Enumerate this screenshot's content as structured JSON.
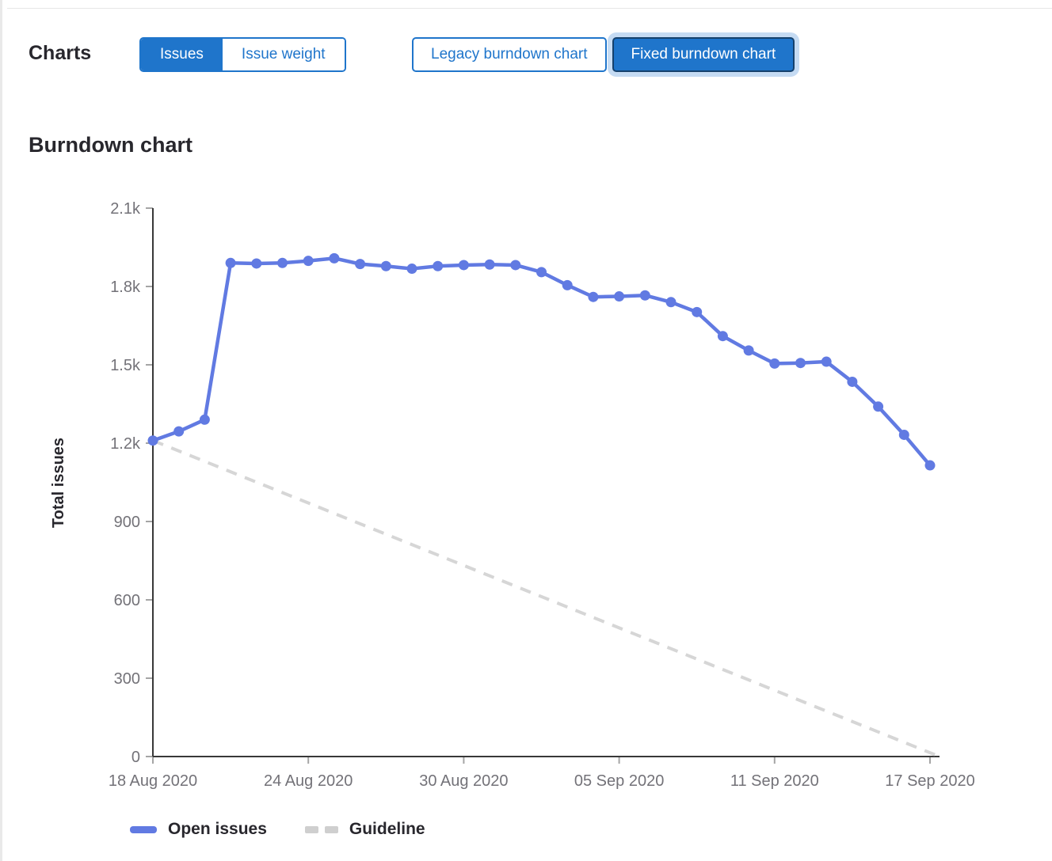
{
  "header": {
    "section_label": "Charts",
    "metric_toggle": {
      "options": [
        {
          "label": "Issues",
          "selected": true
        },
        {
          "label": "Issue weight",
          "selected": false
        }
      ]
    },
    "chart_version_toggle": {
      "options": [
        {
          "label": "Legacy burndown chart",
          "selected": false
        },
        {
          "label": "Fixed burndown chart",
          "selected": true,
          "focused": true
        }
      ]
    }
  },
  "colors": {
    "accent": "#1f75cb",
    "focus_border": "#15416d",
    "focus_ring": "#c5dbf3",
    "line": "#617ae2",
    "guideline": "#d6d6d6",
    "guideline_swatch": "#cfcfcf",
    "axis": "#383838",
    "tick": "#a5a5a5",
    "tick_label": "#737278",
    "text": "#28272d"
  },
  "chart_data": {
    "type": "line",
    "title": "Burndown chart",
    "xlabel": "",
    "ylabel": "Total issues",
    "ylim": [
      0,
      2100
    ],
    "grid": false,
    "legend_position": "bottom",
    "y_ticks": [
      0,
      300,
      600,
      900,
      1200,
      1500,
      1800,
      2100
    ],
    "y_tick_labels": [
      "0",
      "300",
      "600",
      "900",
      "1.2k",
      "1.5k",
      "1.8k",
      "2.1k"
    ],
    "x_tick_labels": [
      "18 Aug 2020",
      "24 Aug 2020",
      "30 Aug 2020",
      "05 Sep 2020",
      "11 Sep 2020",
      "17 Sep 2020"
    ],
    "x_tick_every_days": 6,
    "x": [
      "18 Aug 2020",
      "19 Aug 2020",
      "20 Aug 2020",
      "21 Aug 2020",
      "22 Aug 2020",
      "23 Aug 2020",
      "24 Aug 2020",
      "25 Aug 2020",
      "26 Aug 2020",
      "27 Aug 2020",
      "28 Aug 2020",
      "29 Aug 2020",
      "30 Aug 2020",
      "31 Aug 2020",
      "01 Sep 2020",
      "02 Sep 2020",
      "03 Sep 2020",
      "04 Sep 2020",
      "05 Sep 2020",
      "06 Sep 2020",
      "07 Sep 2020",
      "08 Sep 2020",
      "09 Sep 2020",
      "10 Sep 2020",
      "11 Sep 2020",
      "12 Sep 2020",
      "13 Sep 2020",
      "14 Sep 2020",
      "15 Sep 2020",
      "16 Sep 2020",
      "17 Sep 2020"
    ],
    "series": [
      {
        "name": "Open issues",
        "style": "solid",
        "values": [
          1210,
          1245,
          1290,
          1890,
          1888,
          1890,
          1898,
          1908,
          1886,
          1878,
          1868,
          1878,
          1882,
          1884,
          1882,
          1855,
          1805,
          1760,
          1762,
          1766,
          1740,
          1702,
          1610,
          1555,
          1505,
          1507,
          1512,
          1435,
          1340,
          1232,
          1115
        ]
      }
    ],
    "guideline": {
      "name": "Guideline",
      "style": "dashed",
      "start_value": 1210,
      "end_value": 0
    },
    "legend": [
      {
        "label": "Open issues"
      },
      {
        "label": "Guideline"
      }
    ]
  }
}
